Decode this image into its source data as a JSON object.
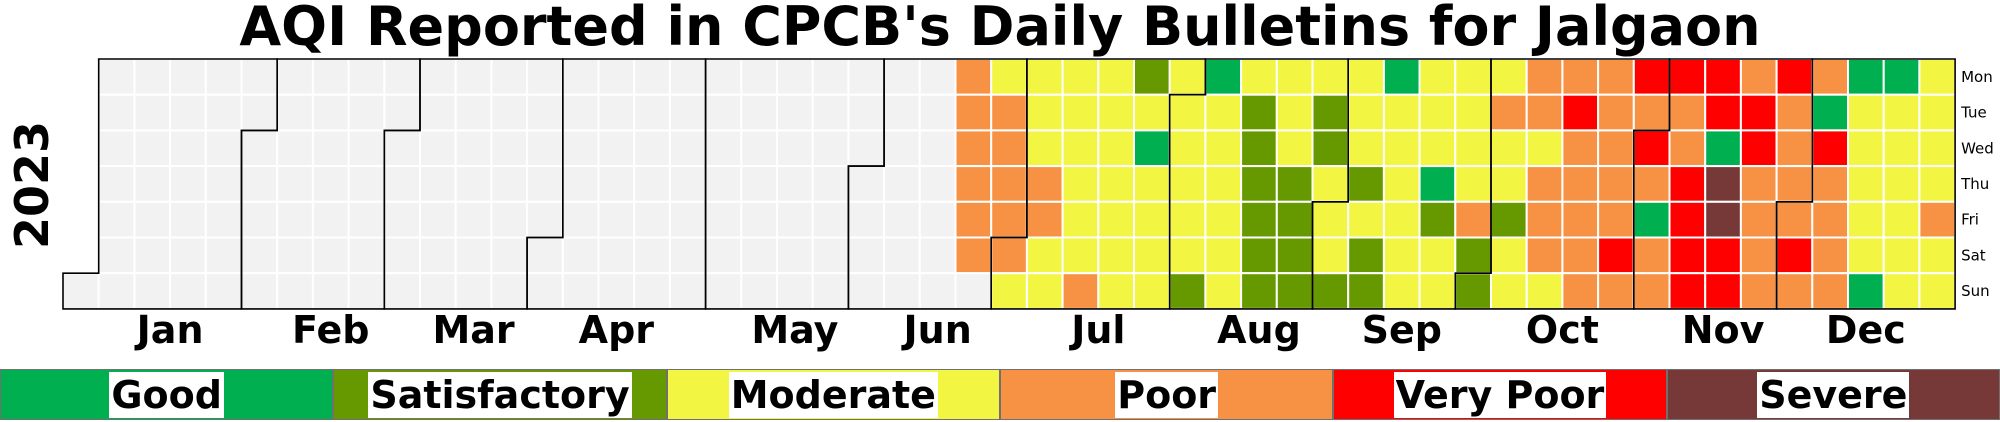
{
  "chart_data": {
    "type": "heatmap",
    "title": "AQI Reported in CPCB's Daily Bulletins for Jalgaon",
    "year_label": "2023",
    "months": [
      "Jan",
      "Feb",
      "Mar",
      "Apr",
      "May",
      "Jun",
      "Jul",
      "Aug",
      "Sep",
      "Oct",
      "Nov",
      "Dec"
    ],
    "weekdays": [
      "Mon",
      "Tue",
      "Wed",
      "Thu",
      "Fri",
      "Sat",
      "Sun"
    ],
    "no_data_color": "#f2f2f2",
    "categories": [
      {
        "code": "G",
        "name": "Good",
        "color": "#00b050"
      },
      {
        "code": "S",
        "name": "Satisfactory",
        "color": "#669900"
      },
      {
        "code": "M",
        "name": "Moderate",
        "color": "#f2f542"
      },
      {
        "code": "P",
        "name": "Poor",
        "color": "#f79245"
      },
      {
        "code": "V",
        "name": "Very Poor",
        "color": "#ff0000"
      },
      {
        "code": "X",
        "name": "Severe",
        "color": "#773838"
      }
    ],
    "first_data_week": 25,
    "week_columns": [
      "PPPPPP.",
      "MPPPPPM",
      "MMMPPMM",
      "MMMMMMP",
      "MMMMMMM",
      "SMGMMMM",
      "MMMMMMS",
      "GMMMMMM",
      "MSSSSSS",
      "MMMSSSS",
      "MSSMMMS",
      "MMMSMSS",
      "GMMMMMM",
      "MMMGSMM",
      "MMMMPSS",
      "MPMMSMM",
      "PPMPPPM",
      "PVPPPPP",
      "PPPPPVP",
      "VPVPGPP",
      "VPPVVVV",
      "VVGXXVV",
      "PVVPPPP",
      "VPPPPVP",
      "PGVPPPP",
      "GMMMMMG",
      "GMMMMMM",
      "MMMMPMM",
      "MMMMPMM",
      "VPPPPPP"
    ]
  }
}
